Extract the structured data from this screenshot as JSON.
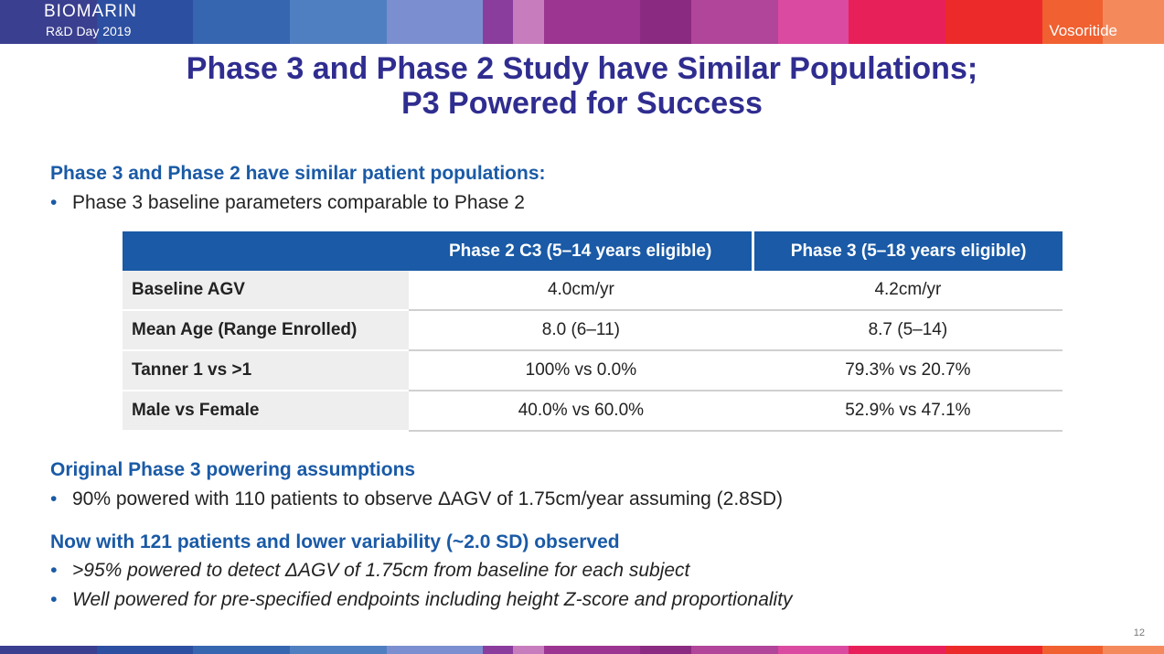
{
  "header": {
    "brand": "BIOMARIN",
    "subtitle": "R&D Day 2019",
    "product": "Vosoritide",
    "colors": [
      "#3a3f8f",
      "#2d4fa1",
      "#3766b0",
      "#4f7fc0",
      "#7b8fd0",
      "#8b3d9e",
      "#c77dbd",
      "#9b3591",
      "#8a2a80",
      "#b0459a",
      "#d94aa0",
      "#e8205a",
      "#ec2a2a",
      "#f06030",
      "#f48a5c"
    ]
  },
  "title": {
    "line1": "Phase 3 and Phase 2 Study have Similar Populations;",
    "line2": "P3 Powered for Success"
  },
  "section1": {
    "heading": "Phase 3 and Phase 2 have similar patient populations:",
    "bullets": [
      "Phase 3 baseline parameters comparable to Phase 2"
    ]
  },
  "table": {
    "headers": [
      "",
      "Phase 2 C3 (5–14 years eligible)",
      "Phase 3 (5–18 years eligible)"
    ],
    "rows": [
      {
        "label": "Baseline AGV",
        "p2": "4.0cm/yr",
        "p3": "4.2cm/yr"
      },
      {
        "label": "Mean Age (Range Enrolled)",
        "p2": "8.0 (6–11)",
        "p3": "8.7 (5–14)"
      },
      {
        "label": "Tanner 1 vs >1",
        "p2": "100% vs 0.0%",
        "p3": "79.3% vs 20.7%"
      },
      {
        "label": "Male vs Female",
        "p2": "40.0% vs 60.0%",
        "p3": "52.9%  vs 47.1%"
      }
    ]
  },
  "section2": {
    "heading": "Original Phase 3 powering assumptions",
    "bullets": [
      "90% powered with 110 patients to observe ΔAGV of 1.75cm/year assuming (2.8SD)"
    ]
  },
  "section3": {
    "heading": "Now with 121 patients and lower variability (~2.0 SD) observed",
    "bullets": [
      ">95% powered to detect ΔAGV of 1.75cm from baseline for each subject",
      "Well powered for pre-specified endpoints including height Z-score and proportionality"
    ]
  },
  "page_number": "12",
  "bullet_char": "•"
}
